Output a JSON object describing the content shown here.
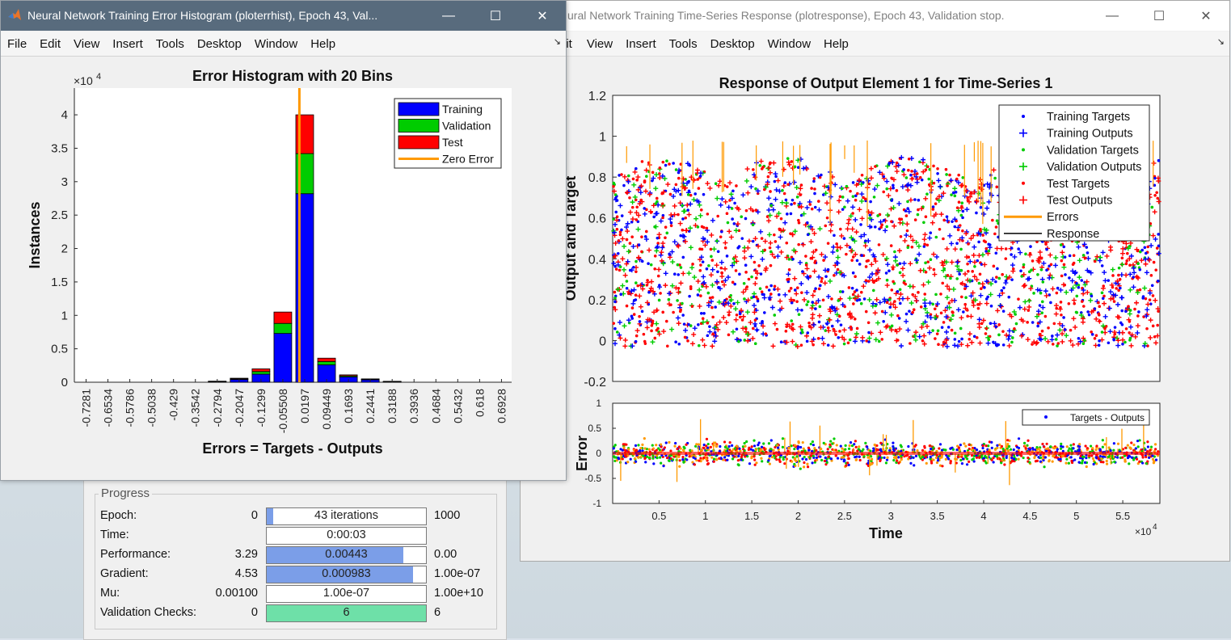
{
  "hist_window": {
    "title": "Neural Network Training Error Histogram (ploterrhist), Epoch 43, Val...",
    "menu": [
      "File",
      "Edit",
      "View",
      "Insert",
      "Tools",
      "Desktop",
      "Window",
      "Help"
    ]
  },
  "resp_window": {
    "title": "ural Network Training Time-Series Response (plotresponse), Epoch 43, Validation stop.",
    "menu": [
      "dit",
      "View",
      "Insert",
      "Tools",
      "Desktop",
      "Window",
      "Help"
    ]
  },
  "window_controls": {
    "minimize": "—",
    "maximize": "☐",
    "close": "✕"
  },
  "colors": {
    "training": "#0000ff",
    "validation": "#00cc00",
    "test": "#ff0000",
    "zero_error": "#ff9900",
    "progress_fill": "#7b9ee8",
    "checks_fill": "#6ee0a8"
  },
  "chart_data": [
    {
      "type": "bar",
      "title": "Error Histogram with 20 Bins",
      "xlabel": "Errors = Targets - Outputs",
      "ylabel": "Instances",
      "y_multiplier": "×10",
      "y_exponent": "4",
      "ylim": [
        0,
        4.4
      ],
      "yticks": [
        "0",
        "0.5",
        "1",
        "1.5",
        "2",
        "2.5",
        "3",
        "3.5",
        "4"
      ],
      "categories": [
        "-0.7281",
        "-0.6534",
        "-0.5786",
        "-0.5038",
        "-0.429",
        "-0.3542",
        "-0.2794",
        "-0.2047",
        "-0.1299",
        "-0.05508",
        "0.0197",
        "0.09449",
        "0.1693",
        "0.2441",
        "0.3188",
        "0.3936",
        "0.4684",
        "0.5432",
        "0.618",
        "0.6928"
      ],
      "stacked": true,
      "series": [
        {
          "name": "Training",
          "values": [
            0,
            0,
            0,
            0,
            0,
            0,
            0.01,
            0.04,
            0.12,
            0.73,
            2.82,
            0.26,
            0.08,
            0.04,
            0.01,
            0,
            0,
            0,
            0,
            0
          ]
        },
        {
          "name": "Validation",
          "values": [
            0,
            0,
            0,
            0,
            0,
            0,
            0.003,
            0.01,
            0.04,
            0.15,
            0.6,
            0.05,
            0.015,
            0.005,
            0.002,
            0,
            0,
            0,
            0,
            0
          ]
        },
        {
          "name": "Test",
          "values": [
            0,
            0,
            0,
            0,
            0,
            0,
            0.003,
            0.01,
            0.04,
            0.17,
            0.58,
            0.05,
            0.015,
            0.005,
            0.002,
            0,
            0,
            0,
            0,
            0
          ]
        }
      ],
      "zero_error_x": 0,
      "legend": [
        "Training",
        "Validation",
        "Test",
        "Zero Error"
      ],
      "legend_position": "top-right"
    },
    {
      "type": "scatter",
      "title": "Response of Output Element 1 for Time-Series 1",
      "xlabel": "",
      "ylabel": "Output and Target",
      "ylim": [
        -0.2,
        1.2
      ],
      "yticks": [
        "-0.2",
        "0",
        "0.2",
        "0.4",
        "0.6",
        "0.8",
        "1",
        "1.2"
      ],
      "xlim": [
        0,
        5.9
      ],
      "x_exponent_label": "×10",
      "x_exponent": "4",
      "legend": [
        "Training Targets",
        "Training Outputs",
        "Validation Targets",
        "Validation Outputs",
        "Test Targets",
        "Test Outputs",
        "Errors",
        "Response"
      ],
      "legend_position": "top-right",
      "series": [
        {
          "name": "Training Targets",
          "values": []
        },
        {
          "name": "Training Outputs",
          "values": []
        },
        {
          "name": "Validation Targets",
          "values": []
        },
        {
          "name": "Validation Outputs",
          "values": []
        },
        {
          "name": "Test Targets",
          "values": []
        },
        {
          "name": "Test Outputs",
          "values": []
        }
      ]
    },
    {
      "type": "scatter",
      "xlabel": "Time",
      "ylabel": "Error",
      "ylim": [
        -1,
        1
      ],
      "yticks": [
        "-1",
        "-0.5",
        "0",
        "0.5",
        "1"
      ],
      "xlim": [
        0,
        5.9
      ],
      "xticks": [
        "0.5",
        "1",
        "1.5",
        "2",
        "2.5",
        "3",
        "3.5",
        "4",
        "4.5",
        "5",
        "5.5"
      ],
      "x_exponent_label": "×10",
      "x_exponent": "4",
      "legend": [
        "Targets - Outputs"
      ],
      "legend_position": "top-right"
    }
  ],
  "progress": {
    "title": "Progress",
    "rows": [
      {
        "label": "Epoch:",
        "start": "0",
        "bar_text": "43 iterations",
        "end": "1000",
        "fill": 0.04,
        "color": "#7b9ee8"
      },
      {
        "label": "Time:",
        "start": "",
        "bar_text": "0:00:03",
        "end": "",
        "fill": 0,
        "color": "#7b9ee8"
      },
      {
        "label": "Performance:",
        "start": "3.29",
        "bar_text": "0.00443",
        "end": "0.00",
        "fill": 0.86,
        "color": "#7b9ee8"
      },
      {
        "label": "Gradient:",
        "start": "4.53",
        "bar_text": "0.000983",
        "end": "1.00e-07",
        "fill": 0.92,
        "color": "#7b9ee8"
      },
      {
        "label": "Mu:",
        "start": "0.00100",
        "bar_text": "1.00e-07",
        "end": "1.00e+10",
        "fill": 0,
        "color": "#7b9ee8"
      },
      {
        "label": "Validation Checks:",
        "start": "0",
        "bar_text": "6",
        "end": "6",
        "fill": 1.0,
        "color": "#6ee0a8"
      }
    ]
  }
}
